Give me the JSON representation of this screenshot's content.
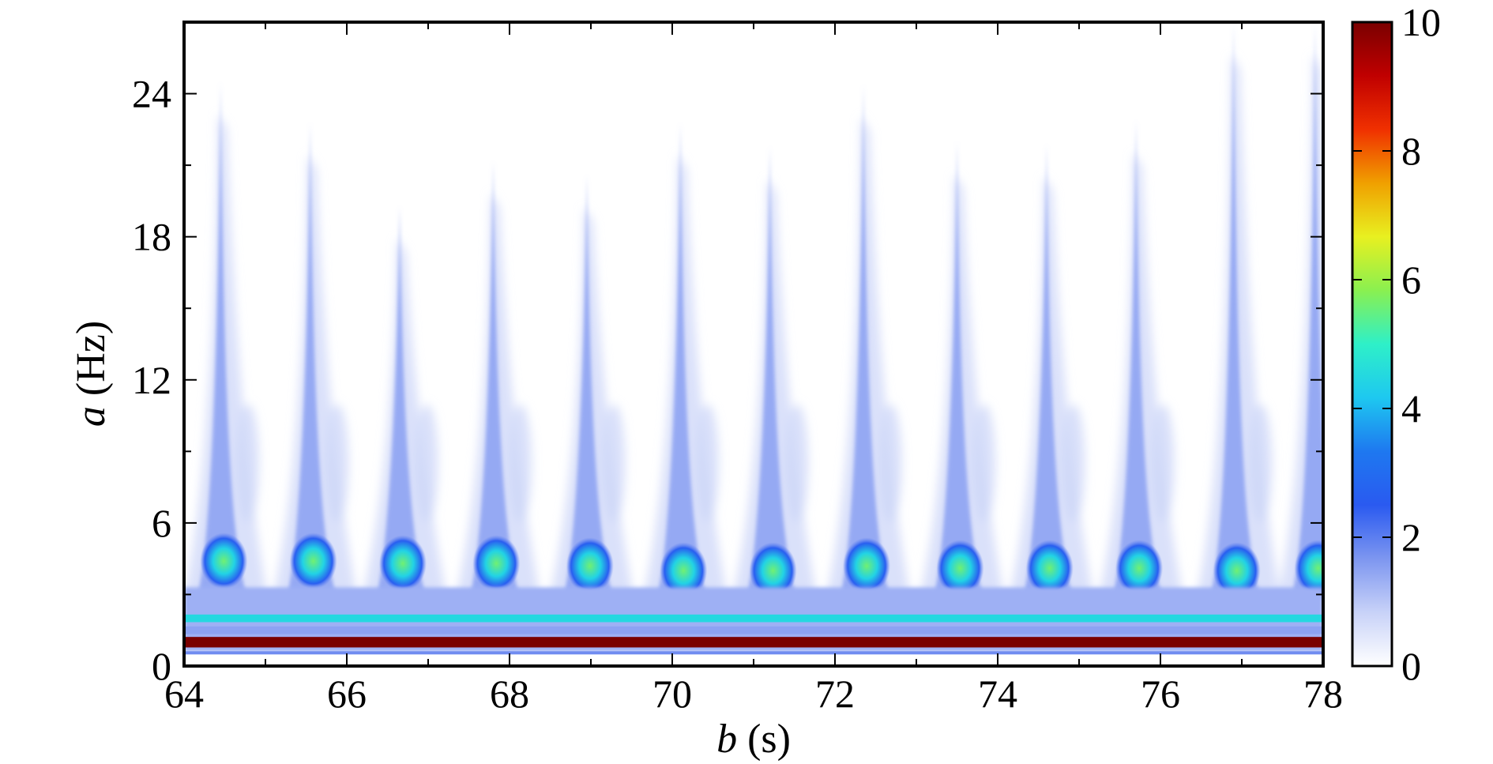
{
  "chart_data": {
    "type": "heatmap",
    "title": "",
    "xlabel": {
      "var": "b",
      "unit": "(s)"
    },
    "ylabel": {
      "var": "a",
      "unit": "(Hz)"
    },
    "xlim": [
      64,
      78
    ],
    "ylim": [
      0,
      27
    ],
    "xticks": [
      64,
      66,
      68,
      70,
      72,
      74,
      76,
      78
    ],
    "yticks": [
      0,
      6,
      12,
      18,
      24
    ],
    "colorbar": {
      "range": [
        0,
        10
      ],
      "ticks": [
        0,
        2,
        4,
        6,
        8,
        10
      ],
      "colormap": "jet"
    },
    "bands": [
      {
        "freq": 1.0,
        "value": 10.0
      },
      {
        "freq": 2.0,
        "value": 4.5
      },
      {
        "freq": 1.5,
        "value": 1.5
      }
    ],
    "bursts": [
      {
        "time": 64.45,
        "core_value": 4.3,
        "core_freq": 4.4,
        "peak_extent": 24.5
      },
      {
        "time": 65.55,
        "core_value": 4.3,
        "core_freq": 4.4,
        "peak_extent": 22.8
      },
      {
        "time": 66.65,
        "core_value": 4.3,
        "core_freq": 4.3,
        "peak_extent": 19.3
      },
      {
        "time": 67.8,
        "core_value": 4.4,
        "core_freq": 4.3,
        "peak_extent": 21.2
      },
      {
        "time": 68.95,
        "core_value": 4.5,
        "core_freq": 4.2,
        "peak_extent": 20.6
      },
      {
        "time": 70.1,
        "core_value": 4.6,
        "core_freq": 4.0,
        "peak_extent": 22.8
      },
      {
        "time": 71.2,
        "core_value": 4.6,
        "core_freq": 4.0,
        "peak_extent": 21.8
      },
      {
        "time": 72.35,
        "core_value": 4.5,
        "core_freq": 4.2,
        "peak_extent": 24.4
      },
      {
        "time": 73.5,
        "core_value": 4.6,
        "core_freq": 4.1,
        "peak_extent": 22.0
      },
      {
        "time": 74.6,
        "core_value": 4.6,
        "core_freq": 4.1,
        "peak_extent": 21.9
      },
      {
        "time": 75.7,
        "core_value": 4.6,
        "core_freq": 4.1,
        "peak_extent": 22.9
      },
      {
        "time": 76.9,
        "core_value": 5.2,
        "core_freq": 4.0,
        "peak_extent": 27.0
      },
      {
        "time": 77.9,
        "core_value": 4.6,
        "core_freq": 4.1,
        "peak_extent": 27.0
      }
    ]
  },
  "colors": {
    "jet": [
      "#ffffff",
      "#c8d2f8",
      "#7d96f0",
      "#2a5af0",
      "#1e78f0",
      "#1ec8f0",
      "#2ef0c8",
      "#8af050",
      "#e8f020",
      "#f0a000",
      "#f03000",
      "#c00000",
      "#7a0000"
    ],
    "frame": "#000000"
  }
}
